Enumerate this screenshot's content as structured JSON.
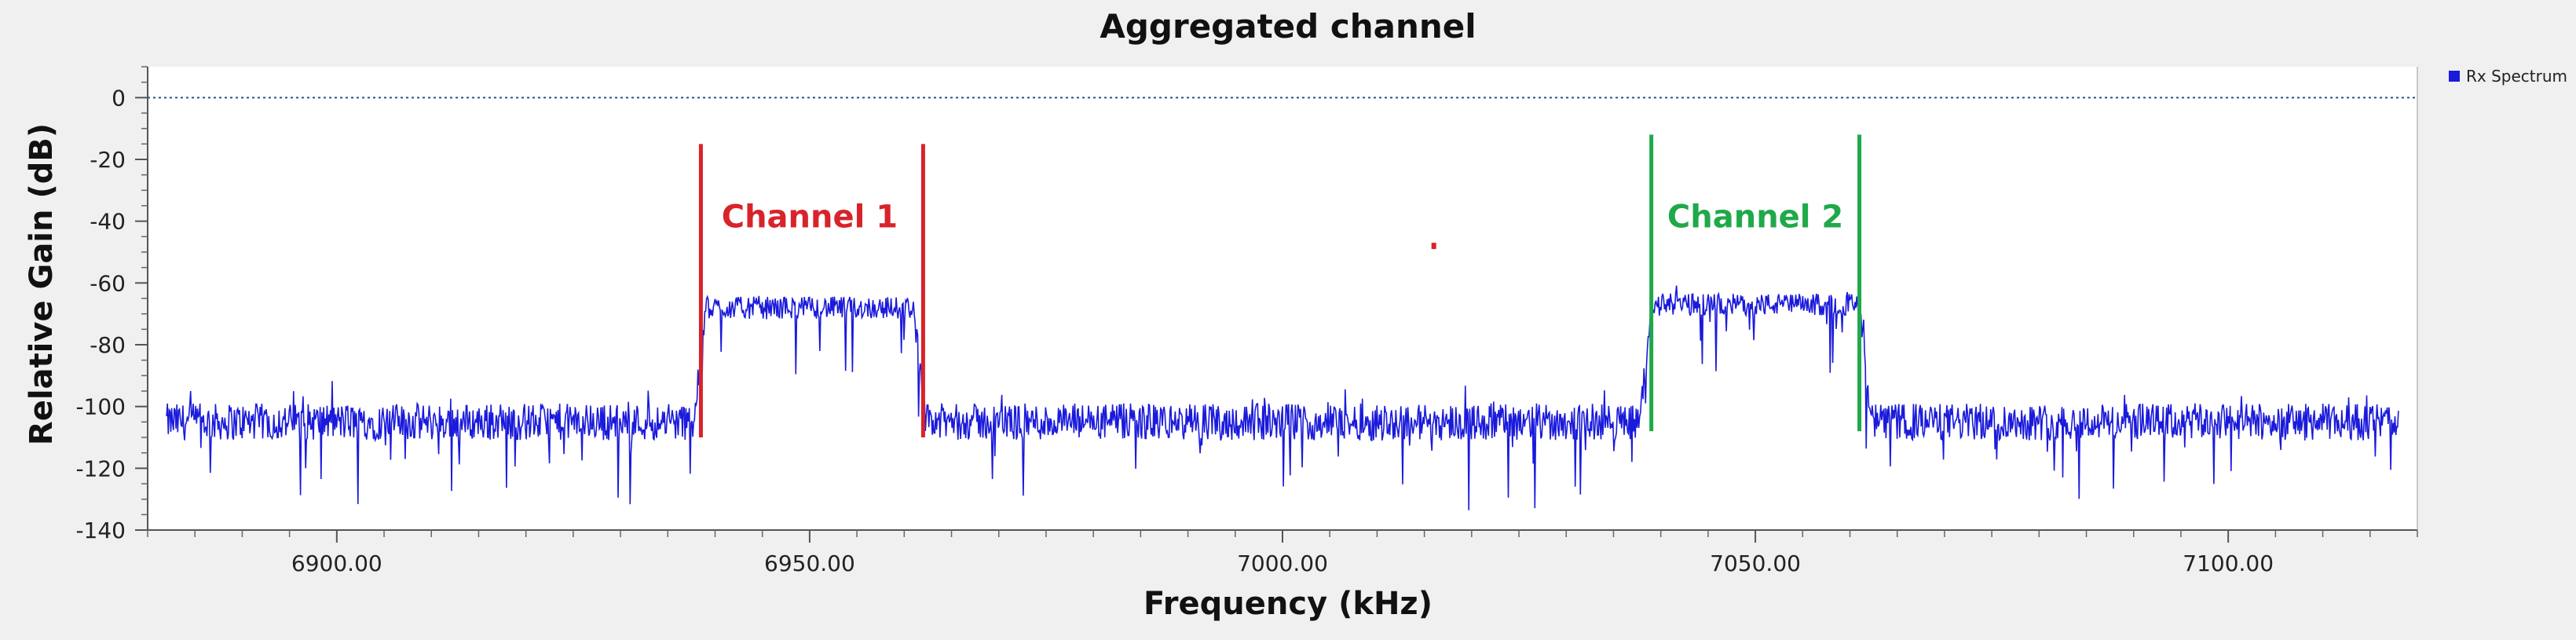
{
  "chart_data": {
    "type": "line",
    "title": "Aggregated channel",
    "xlabel": "Frequency (kHz)",
    "ylabel": "Relative Gain (dB)",
    "xlim": [
      6880,
      7120
    ],
    "ylim": [
      -140,
      10
    ],
    "x_ticks": [
      6900,
      6950,
      7000,
      7050,
      7100
    ],
    "x_tick_labels": [
      "6900.00",
      "6950.00",
      "7000.00",
      "7050.00",
      "7100.00"
    ],
    "y_ticks": [
      0,
      -20,
      -40,
      -60,
      -80,
      -100,
      -120,
      -140
    ],
    "y_tick_labels": [
      "0",
      "-20",
      "-40",
      "-60",
      "-80",
      "-100",
      "-120",
      "-140"
    ],
    "grid": false,
    "reference_line_y": 0,
    "legend": {
      "placement": "top-right",
      "entries": [
        {
          "name": "Rx Spectrum",
          "color": "#1a1adb"
        }
      ]
    },
    "series": [
      {
        "name": "Rx Spectrum",
        "color": "#1a1adb",
        "noise_floor_db": -105,
        "noise_spread_db": 12,
        "bands": [
          {
            "start": 6939,
            "end": 6961,
            "level_db": -68
          },
          {
            "start": 7039,
            "end": 7061,
            "level_db": -67
          }
        ]
      }
    ],
    "annotations": [
      {
        "text": "Channel 1",
        "color": "#d8232a",
        "x": 6950,
        "y": -42,
        "markers_x": [
          6938.5,
          6962
        ],
        "marker_top_db": -15,
        "marker_bottom_db": -110
      },
      {
        "text": "Channel 2",
        "color": "#1fa94a",
        "x": 7050,
        "y": -42,
        "markers_x": [
          7039,
          7061
        ],
        "marker_top_db": -12,
        "marker_bottom_db": -108
      }
    ],
    "stray_mark": {
      "x": 7016,
      "y": -48,
      "color": "#d8232a"
    }
  }
}
